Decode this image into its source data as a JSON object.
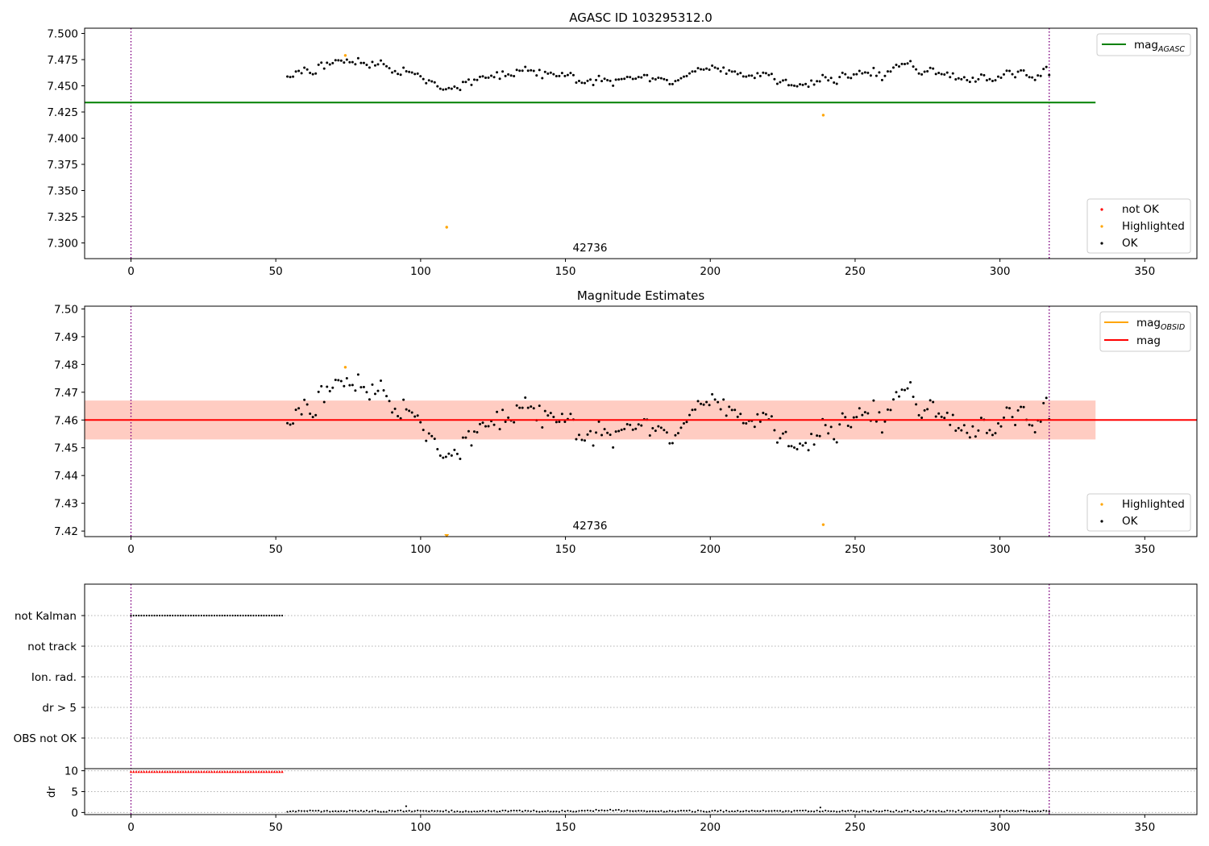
{
  "chart_data": [
    {
      "type": "scatter",
      "title": "AGASC ID 103295312.0",
      "xlim": [
        -16,
        368
      ],
      "ylim": [
        7.285,
        7.505
      ],
      "xticks": [
        0,
        50,
        100,
        150,
        200,
        250,
        300,
        350
      ],
      "yticks": [
        7.3,
        7.325,
        7.35,
        7.375,
        7.4,
        7.425,
        7.45,
        7.475,
        7.5
      ],
      "vlines": [
        0,
        317
      ],
      "annotation": "42736",
      "annotation_at": [
        158,
        7.292
      ],
      "mag_agasc": 7.434,
      "mag_agasc_xrange": [
        -16,
        333
      ],
      "legend_top": {
        "label": "mag",
        "sub": "AGASC",
        "color": "#008000"
      },
      "legend_bottom": [
        {
          "label": "not OK",
          "color": "#ff0000"
        },
        {
          "label": "Highlighted",
          "color": "#ffa500"
        },
        {
          "label": "OK",
          "color": "#000000"
        }
      ],
      "highlighted": [
        [
          74,
          7.479
        ],
        [
          109,
          7.315
        ],
        [
          239,
          7.422
        ]
      ]
    },
    {
      "type": "scatter",
      "title": "Magnitude Estimates",
      "xlim": [
        -16,
        368
      ],
      "ylim": [
        7.418,
        7.501
      ],
      "xticks": [
        0,
        50,
        100,
        150,
        200,
        250,
        300,
        350
      ],
      "yticks": [
        7.42,
        7.43,
        7.44,
        7.45,
        7.46,
        7.47,
        7.48,
        7.49,
        7.5
      ],
      "vlines": [
        0,
        317
      ],
      "annotation": "42736",
      "annotation_at": [
        158,
        7.4205
      ],
      "mag": 7.46,
      "band_red": [
        7.453,
        7.467
      ],
      "band_orange": [
        7.453,
        7.467
      ],
      "band_xrange": [
        -16,
        333
      ],
      "legend_top": [
        {
          "label": "mag",
          "sub": "OBSID",
          "color": "#ffa500"
        },
        {
          "label": "mag",
          "sub": "",
          "color": "#ff0000"
        }
      ],
      "legend_bottom": [
        {
          "label": "Highlighted",
          "color": "#ffa500"
        },
        {
          "label": "OK",
          "color": "#000000"
        }
      ],
      "highlighted": [
        [
          74,
          7.479
        ],
        [
          239,
          7.4223
        ]
      ],
      "highlighted_triangle": [
        [
          109,
          7.418
        ]
      ]
    },
    {
      "type": "scatter",
      "title": "",
      "xlim": [
        -16,
        368
      ],
      "xticks": [
        0,
        50,
        100,
        150,
        200,
        250,
        300,
        350
      ],
      "vlines": [
        0,
        317
      ],
      "flag_labels": [
        "not Kalman",
        "not track",
        "Ion. rad.",
        "dr > 5",
        "OBS not OK"
      ],
      "not_kalman_xrange": [
        0,
        53
      ],
      "ylabel_dr": "dr",
      "dr_ylim": [
        -0.5,
        10.5
      ],
      "dr_yticks": [
        0,
        5,
        10
      ],
      "dr_clip": 9.8,
      "dr_clipped_xrange": [
        0,
        53
      ],
      "dr_spikes": [
        [
          95,
          1.5
        ],
        [
          238,
          1.2
        ]
      ]
    }
  ],
  "colors": {
    "ok": "#000000",
    "not_ok": "#ff0000",
    "highlighted": "#ffa500",
    "agasc_line": "#008000",
    "mag_line": "#ff0000",
    "obsid_line": "#ffa500",
    "vline": "#800080",
    "band_red": "#ffc0cb",
    "band_orange": "#ffa07a",
    "grid": "#b0b0b0"
  }
}
